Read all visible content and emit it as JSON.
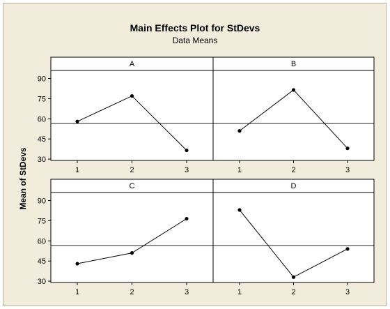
{
  "chart_data": {
    "type": "line",
    "title": "Main Effects Plot for StDevs",
    "subtitle": "Data Means",
    "ylabel": "Mean of StDevs",
    "categories": [
      "1",
      "2",
      "3"
    ],
    "ylim": [
      29,
      96
    ],
    "yticks": [
      30,
      45,
      60,
      75,
      90
    ],
    "reference_line": 56.5,
    "panels": [
      {
        "name": "A",
        "values": [
          58,
          77,
          36.5
        ]
      },
      {
        "name": "B",
        "values": [
          51,
          81.5,
          38
        ]
      },
      {
        "name": "C",
        "values": [
          43,
          51,
          76.5
        ]
      },
      {
        "name": "D",
        "values": [
          83,
          33,
          54
        ]
      }
    ],
    "colors": {
      "background": "#f1ecdb",
      "plot": "#ffffff",
      "line": "#000000"
    }
  }
}
